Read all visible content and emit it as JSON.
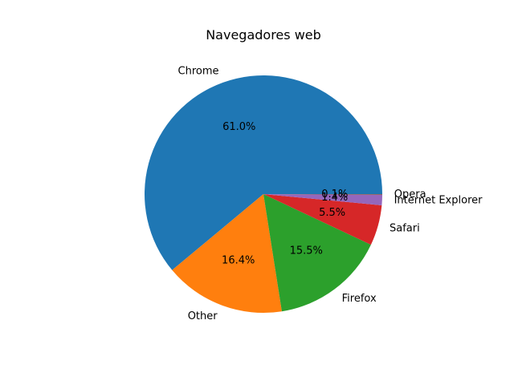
{
  "chart_data": {
    "type": "pie",
    "title": "Navegadores web",
    "slices": [
      {
        "label": "Chrome",
        "value": 61.0,
        "pct_label": "61.0%",
        "color": "#1f77b4"
      },
      {
        "label": "Other",
        "value": 16.4,
        "pct_label": "16.4%",
        "color": "#ff7f0e"
      },
      {
        "label": "Firefox",
        "value": 15.5,
        "pct_label": "15.5%",
        "color": "#2ca02c"
      },
      {
        "label": "Safari",
        "value": 5.5,
        "pct_label": "5.5%",
        "color": "#d62728"
      },
      {
        "label": "Internet Explorer",
        "value": 1.4,
        "pct_label": "1.4%",
        "color": "#9467bd"
      },
      {
        "label": "Opera",
        "value": 0.1,
        "pct_label": "0.1%",
        "color": "#8c564b"
      }
    ],
    "start_angle_deg": 0,
    "direction": "counterclockwise"
  }
}
